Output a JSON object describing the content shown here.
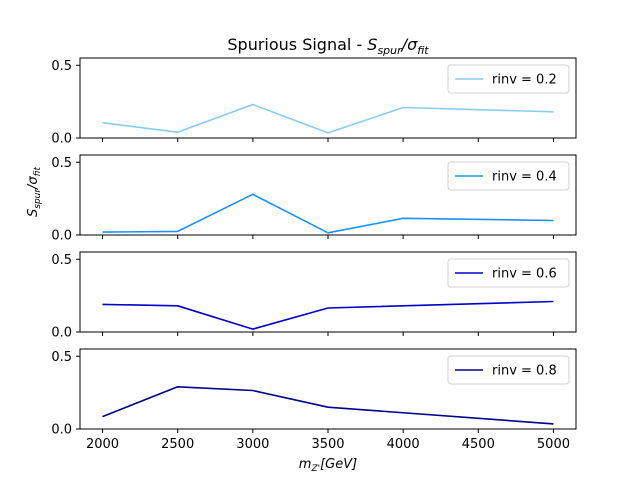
{
  "chart_data": {
    "type": "line",
    "title": "Spurious Signal - S_spur/σ_fit",
    "xlabel": "m_Z'[GeV]",
    "ylabel": "S_spur/σ_fit",
    "x": [
      2000,
      2500,
      3000,
      3500,
      4000,
      5000
    ],
    "xticks": [
      2000,
      2500,
      3000,
      3500,
      4000,
      4500,
      5000
    ],
    "xlim": [
      1850,
      5150
    ],
    "ylim": [
      0,
      0.55
    ],
    "yticks": [
      0.0,
      0.5
    ],
    "ytick_labels": [
      "0.0",
      "0.5"
    ],
    "grid": false,
    "legend_position": "top-right",
    "series": [
      {
        "name": "rinv = 0.2",
        "color": "#87CEEB",
        "values": [
          0.105,
          0.04,
          0.23,
          0.035,
          0.21,
          0.18
        ]
      },
      {
        "name": "rinv = 0.4",
        "color": "#1E90FF",
        "values": [
          0.02,
          0.025,
          0.28,
          0.015,
          0.115,
          0.1
        ]
      },
      {
        "name": "rinv = 0.6",
        "color": "#0000CD",
        "values": [
          0.19,
          0.18,
          0.02,
          0.165,
          null,
          0.21
        ]
      },
      {
        "name": "rinv = 0.8",
        "color": "#00008B",
        "values": [
          0.085,
          0.29,
          0.265,
          0.15,
          null,
          0.035
        ]
      }
    ]
  }
}
